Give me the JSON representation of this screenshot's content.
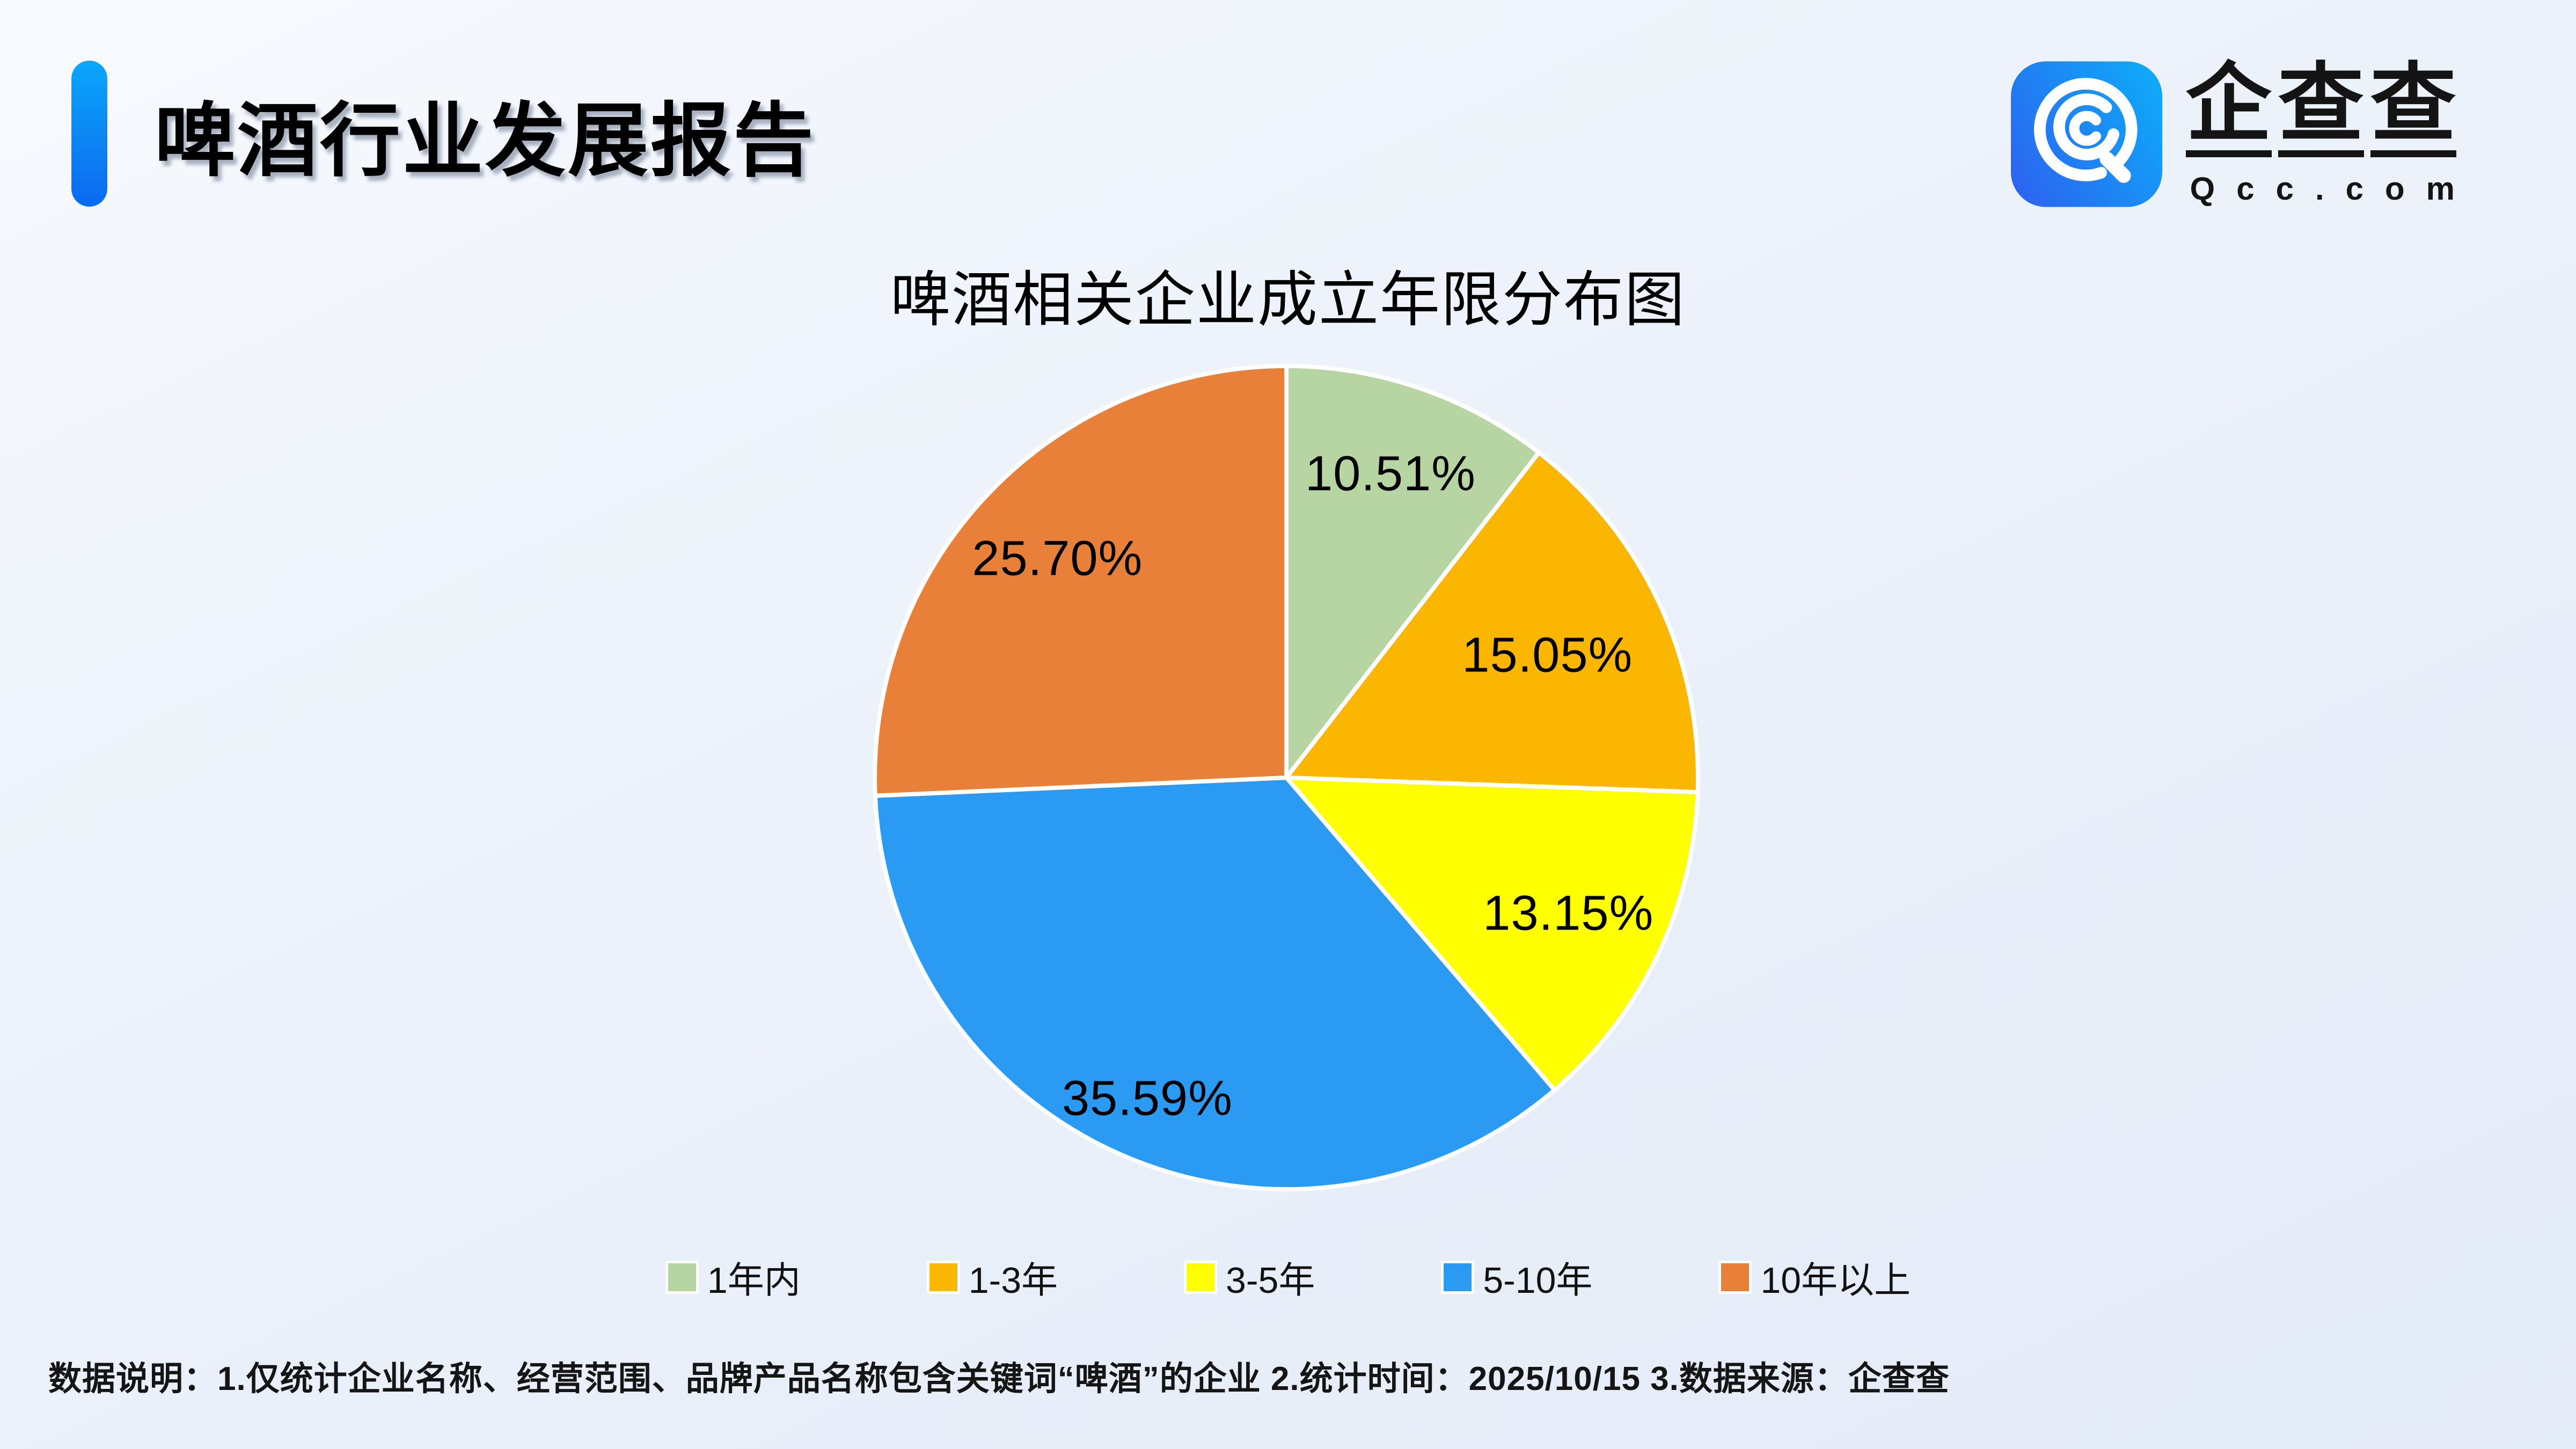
{
  "page": {
    "title": "啤酒行业发展报告",
    "logo": {
      "name": "企查查",
      "domain": "Qcc.com"
    },
    "footnote": "数据说明：1.仅统计企业名称、经营范围、品牌产品名称包含关键词“啤酒”的企业  2.统计时间：2025/10/15  3.数据来源：企查查"
  },
  "chart_data": {
    "type": "pie",
    "title": "啤酒相关企业成立年限分布图",
    "categories": [
      "1年内",
      "1-3年",
      "3-5年",
      "5-10年",
      "10年以上"
    ],
    "values": [
      10.51,
      15.05,
      13.15,
      35.59,
      25.7
    ],
    "labels": [
      "10.51%",
      "15.05%",
      "13.15%",
      "35.59%",
      "25.70%"
    ],
    "colors": [
      "#B7D5A2",
      "#FBB601",
      "#FFFF00",
      "#2B9AF3",
      "#E8803A"
    ],
    "slice_edge_color": "#FFFFFF",
    "start_angle_deg_from_12_oclock": 0,
    "direction": "clockwise",
    "legend_position": "bottom",
    "label_distance": [
      0.78,
      0.7,
      0.76,
      0.85,
      0.77
    ]
  },
  "colors": {
    "accent_blue_top": "#0AA7FA",
    "accent_blue_bottom": "#0B6AF0",
    "logo_blue_left": "#2B66EF",
    "logo_blue_right": "#0FA9FA",
    "background": "#EDF2FB",
    "text": "#000000"
  }
}
